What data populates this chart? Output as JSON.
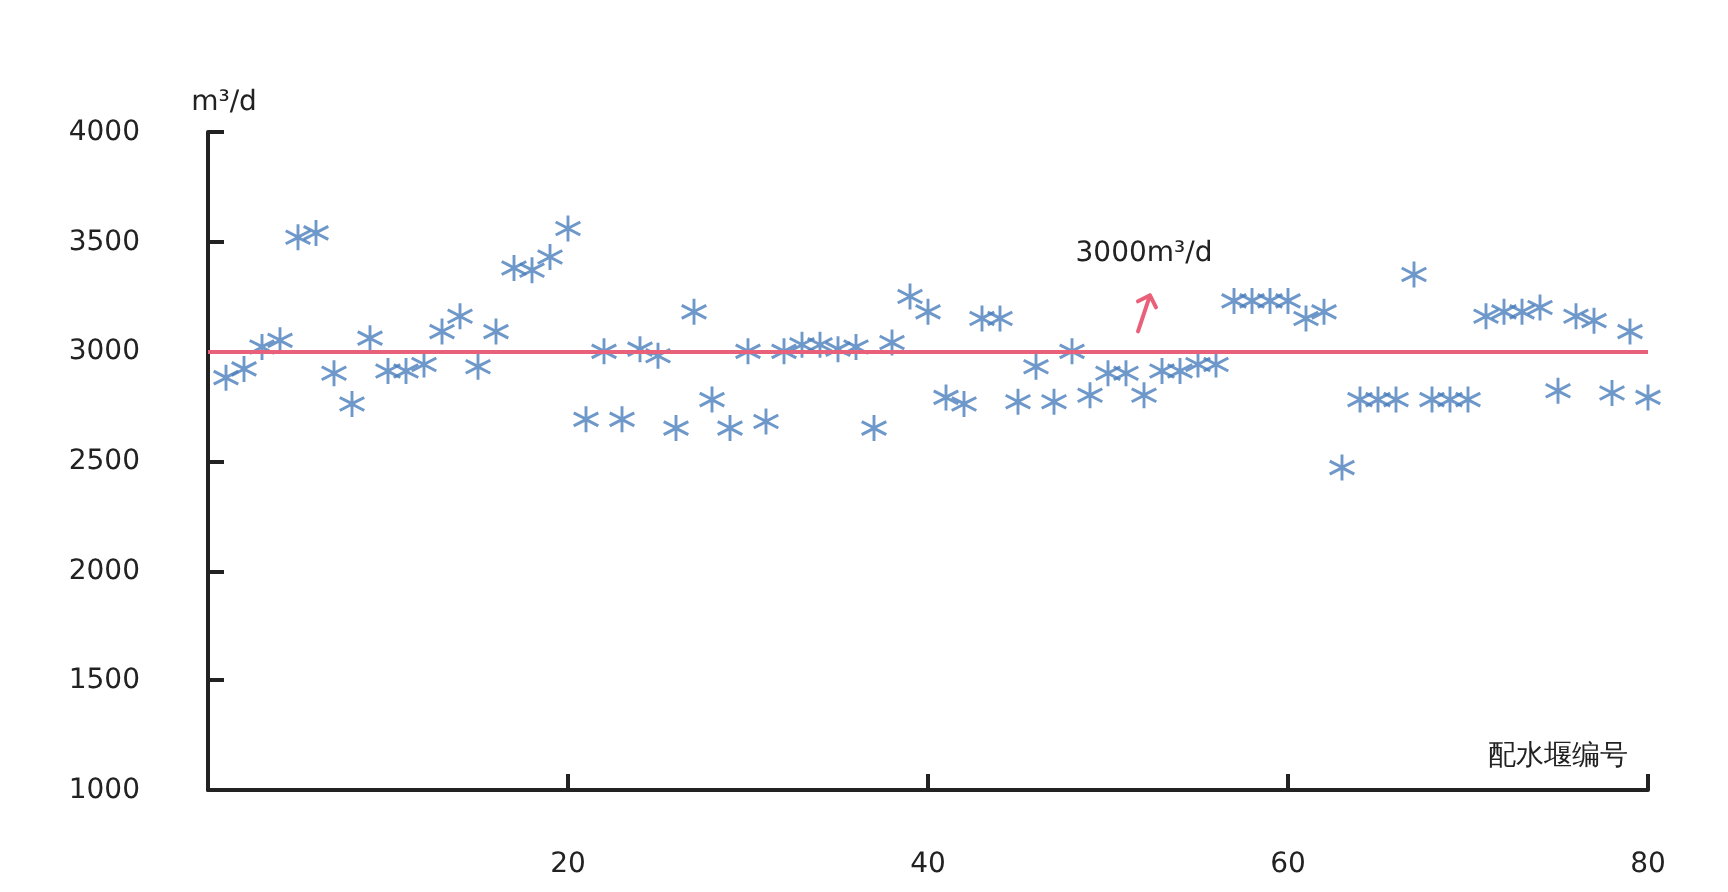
{
  "chart_data": {
    "type": "scatter",
    "xlabel": "配水堰编号",
    "ylabel": "m³/d",
    "x": [
      1,
      2,
      3,
      4,
      5,
      6,
      7,
      8,
      9,
      10,
      11,
      12,
      13,
      14,
      15,
      16,
      17,
      18,
      19,
      20,
      21,
      22,
      23,
      24,
      25,
      26,
      27,
      28,
      29,
      30,
      31,
      32,
      33,
      34,
      35,
      36,
      37,
      38,
      39,
      40,
      41,
      42,
      43,
      44,
      45,
      46,
      47,
      48,
      49,
      50,
      51,
      52,
      53,
      54,
      55,
      56,
      57,
      58,
      59,
      60,
      61,
      62,
      63,
      64,
      65,
      66,
      67,
      68,
      69,
      70,
      71,
      72,
      73,
      74,
      75,
      76,
      77,
      78,
      79,
      80
    ],
    "series": [
      {
        "color": "#4a7ebb",
        "values": [
          2880,
          2920,
          3020,
          3050,
          3520,
          3540,
          2900,
          2760,
          3060,
          2910,
          2910,
          2940,
          3090,
          3160,
          2930,
          3090,
          3380,
          3370,
          3430,
          3560,
          2690,
          3000,
          2690,
          3010,
          2980,
          2650,
          3180,
          2780,
          2650,
          3000,
          2680,
          3000,
          3030,
          3030,
          3010,
          3020,
          2650,
          3040,
          3250,
          3180,
          2790,
          2760,
          3150,
          3150,
          2770,
          2930,
          2770,
          3000,
          2800,
          2900,
          2900,
          2800,
          2910,
          2910,
          2940,
          2940,
          3230,
          3230,
          3230,
          3230,
          3150,
          3180,
          2470,
          2780,
          2780,
          2780,
          3350,
          2780,
          2780,
          2780,
          3160,
          3180,
          3180,
          3200,
          2820,
          3160,
          3140,
          2810,
          3090,
          2790
        ]
      }
    ],
    "xlim": [
      0,
      80
    ],
    "xticks": [
      20,
      40,
      60,
      80
    ],
    "ylim": [
      1000,
      4000
    ],
    "yticks": [
      1000,
      1500,
      2000,
      2500,
      3000,
      3500,
      4000
    ],
    "ref_lines": [
      {
        "axis": "y",
        "value": 3000,
        "label": "3000m³/d",
        "color": "#e8607a"
      }
    ],
    "marker": "star",
    "grid": false
  }
}
